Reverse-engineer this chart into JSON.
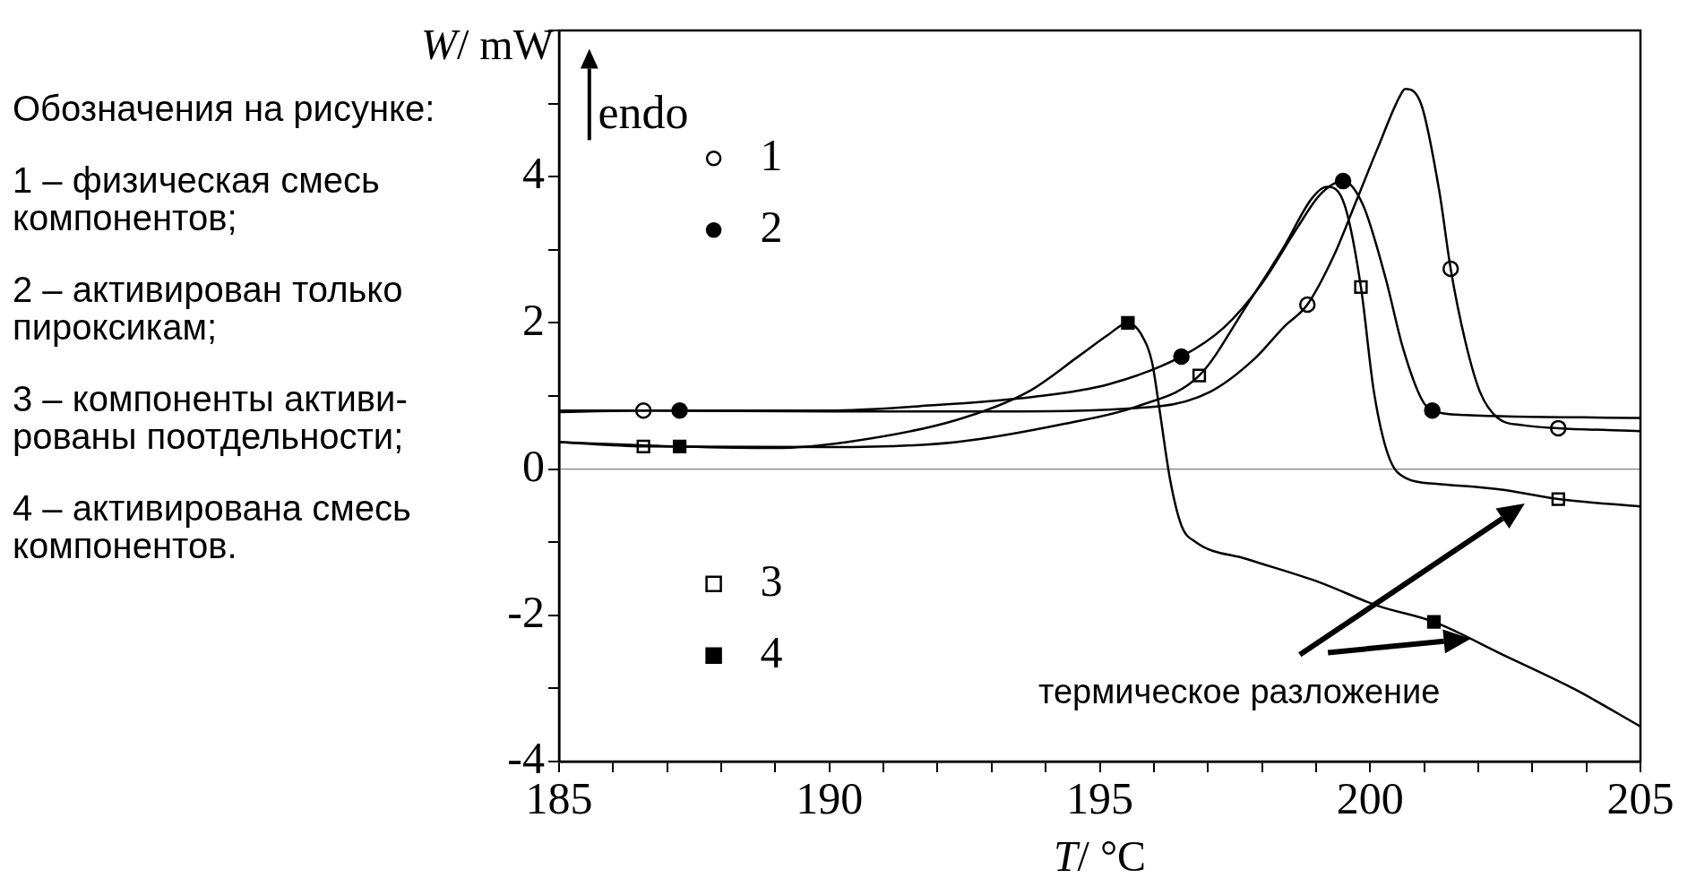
{
  "chart_data": {
    "type": "line",
    "xlabel": "T/ °C",
    "ylabel": "W/ mW",
    "xlim": [
      185,
      205
    ],
    "xticks": [
      185,
      {
        "value": 186,
        "label": null
      },
      {
        "value": 187,
        "label": null
      },
      {
        "value": 188,
        "label": null
      },
      {
        "value": 189,
        "label": null
      },
      190,
      {
        "value": 191,
        "label": null
      },
      {
        "value": 192,
        "label": null
      },
      {
        "value": 193,
        "label": null
      },
      {
        "value": 194,
        "label": null
      },
      195,
      {
        "value": 196,
        "label": null
      },
      {
        "value": 197,
        "label": null
      },
      {
        "value": 198,
        "label": null
      },
      {
        "value": 199,
        "label": null
      },
      200,
      {
        "value": 201,
        "label": null
      },
      {
        "value": 202,
        "label": null
      },
      {
        "value": 203,
        "label": null
      },
      {
        "value": 204,
        "label": null
      },
      205
    ],
    "ylim": [
      -4,
      6
    ],
    "yticks": [
      -4,
      {
        "value": -3,
        "label": null
      },
      -2,
      {
        "value": -1,
        "label": null
      },
      0,
      {
        "value": 1,
        "label": null
      },
      2,
      {
        "value": 3,
        "label": null
      },
      4,
      {
        "value": 5,
        "label": null
      },
      {
        "value": 6,
        "label": null
      }
    ],
    "grid": false,
    "legend": "left",
    "ref_lines": [
      {
        "axis": "y",
        "value": 0,
        "color": "#808080"
      }
    ],
    "annotations": [
      "Обозначения на рисунке:",
      "1 – физическая смесь\nкомпонентов;",
      "2 – активирован только\nпироксикам;",
      "3 – компоненты активи-\nрованы поотдельности;",
      "4 – активирована смесь\nкомпонентов.",
      "endo",
      "термическое разложение"
    ],
    "series": [
      {
        "marker": "none",
        "color": "#000000",
        "x": [
          185,
          186.56,
          190,
          193,
          196.1,
          197.05,
          197.85,
          198.4,
          198.84,
          199.33,
          199.74,
          200.14,
          200.55,
          200.65,
          200.95,
          201.28,
          201.49,
          201.76,
          202.03,
          202.36,
          202.83,
          203.48,
          205
        ],
        "values": [
          0.78,
          0.8,
          0.79,
          0.79,
          0.86,
          1.06,
          1.5,
          1.94,
          2.25,
          2.92,
          3.66,
          4.39,
          5.1,
          5.2,
          4.98,
          3.8,
          2.74,
          1.75,
          1.06,
          0.7,
          0.6,
          0.56,
          0.52
        ]
      },
      {
        "marker": "none",
        "color": "#000000",
        "x": [
          185,
          187.23,
          190,
          191.66,
          193.8,
          195.16,
          196.51,
          197.3,
          197.99,
          198.66,
          199.07,
          199.5,
          199.87,
          200.28,
          200.61,
          200.95,
          201.15,
          201.76,
          205
        ],
        "values": [
          0.8,
          0.8,
          0.8,
          0.86,
          0.99,
          1.16,
          1.54,
          1.94,
          2.53,
          3.31,
          3.75,
          3.94,
          3.61,
          2.63,
          1.65,
          0.96,
          0.8,
          0.74,
          0.7
        ]
      },
      {
        "marker": "none",
        "color": "#000000",
        "x": [
          185,
          186.56,
          190,
          192.34,
          194.35,
          195.7,
          196.84,
          197.72,
          198.39,
          198.93,
          199.2,
          199.53,
          199.83,
          200.07,
          200.34,
          200.68,
          201.22,
          202.43,
          203.48,
          205
        ],
        "values": [
          0.37,
          0.31,
          0.3,
          0.37,
          0.62,
          0.86,
          1.28,
          2.24,
          3.02,
          3.71,
          3.86,
          3.61,
          2.49,
          1.06,
          0.18,
          -0.13,
          -0.2,
          -0.28,
          -0.41,
          -0.51
        ]
      },
      {
        "marker": "none",
        "color": "#000000",
        "x": [
          185,
          187.23,
          189,
          190.32,
          192.34,
          193.68,
          194.62,
          195.16,
          195.52,
          195.77,
          195.97,
          196.1,
          196.3,
          196.51,
          196.78,
          197.72,
          199.07,
          200.14,
          201.18,
          202.43,
          203.78,
          205
        ],
        "values": [
          0.37,
          0.31,
          0.29,
          0.37,
          0.67,
          1.06,
          1.55,
          1.84,
          2.0,
          1.84,
          1.45,
          0.84,
          -0.14,
          -0.77,
          -1.0,
          -1.23,
          -1.55,
          -1.87,
          -2.09,
          -2.53,
          -3.01,
          -3.52
        ]
      },
      {
        "type": "scatter",
        "name": "1",
        "marker": "circle",
        "color": "#000000",
        "colors": [
          "#ffffff",
          "#ffffff",
          "#ffffff",
          "#ffffff"
        ],
        "x": [
          186.56,
          198.84,
          201.49,
          203.48
        ],
        "values": [
          0.8,
          2.25,
          2.74,
          0.56
        ]
      },
      {
        "type": "scatter",
        "name": "2",
        "marker": "circle",
        "color": "#000000",
        "colors": [
          "#000000",
          "#000000",
          "#000000",
          "#000000"
        ],
        "x": [
          187.23,
          196.51,
          199.5,
          201.15
        ],
        "values": [
          0.8,
          1.54,
          3.94,
          0.8
        ]
      },
      {
        "type": "scatter",
        "name": "3",
        "marker": "square",
        "color": "#000000",
        "colors": [
          "#ffffff",
          "#ffffff",
          "#ffffff",
          "#ffffff"
        ],
        "x": [
          186.56,
          196.84,
          199.83,
          203.48
        ],
        "values": [
          0.31,
          1.28,
          2.49,
          -0.41
        ]
      },
      {
        "type": "scatter",
        "name": "4",
        "marker": "square",
        "color": "#000000",
        "colors": [
          "#000000",
          "#000000",
          "#000000"
        ],
        "x": [
          187.23,
          195.52,
          201.18
        ],
        "values": [
          0.31,
          2.0,
          -2.09
        ]
      }
    ]
  }
}
